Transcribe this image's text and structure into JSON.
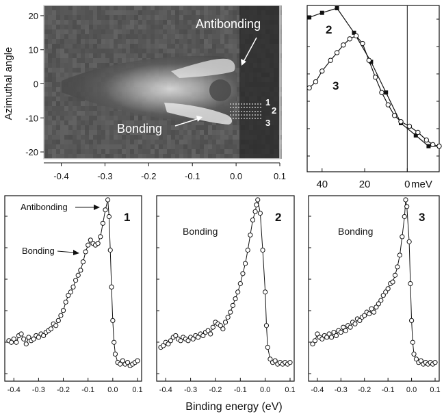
{
  "figure": {
    "xlabel": "Binding energy (eV)"
  },
  "chart_data": [
    {
      "id": "map",
      "type": "heatmap",
      "ylabel": "Azimuthal angle",
      "xlim": [
        -0.44,
        0.1
      ],
      "ylim": [
        -22,
        23
      ],
      "xticks": [
        -0.4,
        -0.3,
        -0.2,
        -0.1,
        0.0,
        0.1
      ],
      "xtick_labels": [
        "-0.4",
        "-0.3",
        "-0.2",
        "-0.1",
        "0.0",
        "0.1"
      ],
      "yticks": [
        20,
        10,
        0,
        -10,
        -20
      ],
      "ytick_labels": [
        "20",
        "10",
        "0",
        "-10",
        "-20"
      ],
      "annotations": [
        "Antibonding",
        "Bonding",
        "1",
        "2",
        "3"
      ],
      "cut_markers": [
        "1",
        "2",
        "3"
      ],
      "colormap": [
        "#1f1f1f",
        "#ffffff"
      ]
    },
    {
      "id": "mdc",
      "type": "line",
      "x_unit_label": "meV",
      "xlim": [
        47,
        -15
      ],
      "xticks": [
        40,
        20,
        0
      ],
      "xtick_labels": [
        "40",
        "20",
        "0"
      ],
      "vline_x": 0,
      "series": [
        {
          "name": "2",
          "marker": "filled-square",
          "x": [
            46,
            40,
            33,
            25,
            17,
            10,
            3,
            -4,
            -10,
            -15
          ],
          "y": [
            0.94,
            0.97,
            1.0,
            0.84,
            0.65,
            0.45,
            0.25,
            0.17,
            0.1,
            0.1
          ]
        },
        {
          "name": "3",
          "marker": "open-circle",
          "x": [
            46,
            43,
            40,
            36,
            33,
            30,
            27,
            24,
            21,
            18,
            15,
            12,
            9,
            6,
            3,
            -1,
            -5,
            -9,
            -12,
            -15
          ],
          "y": [
            0.48,
            0.52,
            0.59,
            0.66,
            0.71,
            0.76,
            0.8,
            0.82,
            0.77,
            0.66,
            0.55,
            0.45,
            0.37,
            0.3,
            0.26,
            0.23,
            0.19,
            0.14,
            0.11,
            0.1
          ]
        }
      ]
    },
    {
      "id": "edc1",
      "type": "scatter",
      "label": "1",
      "annotations": [
        "Antibonding",
        "Bonding"
      ],
      "xticks": [
        -0.4,
        -0.3,
        -0.2,
        -0.1,
        0.0,
        0.1
      ],
      "xtick_labels": [
        "-0.4",
        "-0.3",
        "-0.2",
        "-0.1",
        "0.0",
        "0.1"
      ],
      "points": [
        [
          -0.42,
          0.16
        ],
        [
          -0.41,
          0.15
        ],
        [
          -0.4,
          0.17
        ],
        [
          -0.39,
          0.15
        ],
        [
          -0.38,
          0.19
        ],
        [
          -0.37,
          0.2
        ],
        [
          -0.36,
          0.17
        ],
        [
          -0.35,
          0.14
        ],
        [
          -0.34,
          0.18
        ],
        [
          -0.33,
          0.16
        ],
        [
          -0.32,
          0.17
        ],
        [
          -0.31,
          0.19
        ],
        [
          -0.3,
          0.18
        ],
        [
          -0.29,
          0.2
        ],
        [
          -0.28,
          0.19
        ],
        [
          -0.27,
          0.21
        ],
        [
          -0.26,
          0.22
        ],
        [
          -0.25,
          0.23
        ],
        [
          -0.24,
          0.26
        ],
        [
          -0.23,
          0.25
        ],
        [
          -0.22,
          0.28
        ],
        [
          -0.21,
          0.31
        ],
        [
          -0.2,
          0.34
        ],
        [
          -0.19,
          0.39
        ],
        [
          -0.18,
          0.43
        ],
        [
          -0.17,
          0.45
        ],
        [
          -0.16,
          0.48
        ],
        [
          -0.15,
          0.52
        ],
        [
          -0.14,
          0.55
        ],
        [
          -0.13,
          0.58
        ],
        [
          -0.12,
          0.63
        ],
        [
          -0.11,
          0.69
        ],
        [
          -0.1,
          0.73
        ],
        [
          -0.09,
          0.76
        ],
        [
          -0.08,
          0.74
        ],
        [
          -0.07,
          0.73
        ],
        [
          -0.06,
          0.74
        ],
        [
          -0.05,
          0.78
        ],
        [
          -0.04,
          0.86
        ],
        [
          -0.03,
          0.94
        ],
        [
          -0.02,
          1.0
        ],
        [
          -0.015,
          0.9
        ],
        [
          -0.01,
          0.7
        ],
        [
          -0.005,
          0.48
        ],
        [
          0.0,
          0.28
        ],
        [
          0.005,
          0.15
        ],
        [
          0.01,
          0.08
        ],
        [
          0.02,
          0.03
        ],
        [
          0.03,
          0.02
        ],
        [
          0.04,
          0.04
        ],
        [
          0.05,
          0.02
        ],
        [
          0.06,
          0.03
        ],
        [
          0.07,
          0.01
        ],
        [
          0.08,
          0.02
        ],
        [
          0.09,
          0.03
        ],
        [
          0.1,
          0.04
        ]
      ]
    },
    {
      "id": "edc2",
      "type": "scatter",
      "label": "2",
      "annotations": [
        "Bonding"
      ],
      "xticks": [
        -0.4,
        -0.3,
        -0.2,
        -0.1,
        0.0,
        0.1
      ],
      "xtick_labels": [
        "-0.4",
        "-0.3",
        "-0.2",
        "-0.1",
        "0.0",
        "0.1"
      ],
      "points": [
        [
          -0.42,
          0.12
        ],
        [
          -0.41,
          0.13
        ],
        [
          -0.4,
          0.15
        ],
        [
          -0.39,
          0.14
        ],
        [
          -0.38,
          0.16
        ],
        [
          -0.37,
          0.18
        ],
        [
          -0.36,
          0.19
        ],
        [
          -0.35,
          0.17
        ],
        [
          -0.34,
          0.16
        ],
        [
          -0.33,
          0.18
        ],
        [
          -0.32,
          0.17
        ],
        [
          -0.31,
          0.16
        ],
        [
          -0.3,
          0.18
        ],
        [
          -0.29,
          0.17
        ],
        [
          -0.28,
          0.19
        ],
        [
          -0.27,
          0.18
        ],
        [
          -0.26,
          0.2
        ],
        [
          -0.25,
          0.19
        ],
        [
          -0.24,
          0.21
        ],
        [
          -0.23,
          0.22
        ],
        [
          -0.22,
          0.2
        ],
        [
          -0.21,
          0.24
        ],
        [
          -0.2,
          0.27
        ],
        [
          -0.19,
          0.26
        ],
        [
          -0.18,
          0.25
        ],
        [
          -0.17,
          0.23
        ],
        [
          -0.16,
          0.27
        ],
        [
          -0.15,
          0.3
        ],
        [
          -0.14,
          0.33
        ],
        [
          -0.13,
          0.37
        ],
        [
          -0.12,
          0.41
        ],
        [
          -0.11,
          0.45
        ],
        [
          -0.1,
          0.5
        ],
        [
          -0.09,
          0.56
        ],
        [
          -0.08,
          0.62
        ],
        [
          -0.07,
          0.7
        ],
        [
          -0.06,
          0.79
        ],
        [
          -0.05,
          0.88
        ],
        [
          -0.04,
          0.93
        ],
        [
          -0.035,
          0.97
        ],
        [
          -0.03,
          1.0
        ],
        [
          -0.02,
          0.92
        ],
        [
          -0.01,
          0.7
        ],
        [
          0.0,
          0.45
        ],
        [
          0.005,
          0.25
        ],
        [
          0.01,
          0.12
        ],
        [
          0.02,
          0.05
        ],
        [
          0.03,
          0.03
        ],
        [
          0.04,
          0.04
        ],
        [
          0.05,
          0.02
        ],
        [
          0.06,
          0.03
        ],
        [
          0.07,
          0.02
        ],
        [
          0.08,
          0.03
        ],
        [
          0.09,
          0.02
        ],
        [
          0.1,
          0.03
        ]
      ]
    },
    {
      "id": "edc3",
      "type": "scatter",
      "label": "3",
      "annotations": [
        "Bonding"
      ],
      "xticks": [
        -0.4,
        -0.3,
        -0.2,
        -0.1,
        0.0,
        0.1
      ],
      "xtick_labels": [
        "-0.4",
        "-0.3",
        "-0.2",
        "-0.1",
        "0.0",
        "0.1"
      ],
      "points": [
        [
          -0.42,
          0.14
        ],
        [
          -0.41,
          0.16
        ],
        [
          -0.4,
          0.2
        ],
        [
          -0.39,
          0.18
        ],
        [
          -0.38,
          0.17
        ],
        [
          -0.37,
          0.19
        ],
        [
          -0.36,
          0.18
        ],
        [
          -0.35,
          0.2
        ],
        [
          -0.34,
          0.18
        ],
        [
          -0.33,
          0.21
        ],
        [
          -0.32,
          0.19
        ],
        [
          -0.31,
          0.22
        ],
        [
          -0.3,
          0.21
        ],
        [
          -0.29,
          0.24
        ],
        [
          -0.28,
          0.22
        ],
        [
          -0.27,
          0.25
        ],
        [
          -0.26,
          0.24
        ],
        [
          -0.25,
          0.27
        ],
        [
          -0.24,
          0.26
        ],
        [
          -0.23,
          0.29
        ],
        [
          -0.22,
          0.28
        ],
        [
          -0.21,
          0.3
        ],
        [
          -0.2,
          0.31
        ],
        [
          -0.19,
          0.33
        ],
        [
          -0.18,
          0.32
        ],
        [
          -0.17,
          0.35
        ],
        [
          -0.16,
          0.33
        ],
        [
          -0.15,
          0.36
        ],
        [
          -0.14,
          0.38
        ],
        [
          -0.13,
          0.4
        ],
        [
          -0.12,
          0.43
        ],
        [
          -0.11,
          0.45
        ],
        [
          -0.1,
          0.47
        ],
        [
          -0.09,
          0.5
        ],
        [
          -0.08,
          0.51
        ],
        [
          -0.07,
          0.55
        ],
        [
          -0.06,
          0.6
        ],
        [
          -0.05,
          0.67
        ],
        [
          -0.04,
          0.78
        ],
        [
          -0.03,
          0.9
        ],
        [
          -0.025,
          1.0
        ],
        [
          -0.02,
          0.96
        ],
        [
          -0.01,
          0.75
        ],
        [
          -0.005,
          0.5
        ],
        [
          0.0,
          0.28
        ],
        [
          0.005,
          0.15
        ],
        [
          0.01,
          0.08
        ],
        [
          0.02,
          0.05
        ],
        [
          0.03,
          0.03
        ],
        [
          0.04,
          0.04
        ],
        [
          0.05,
          0.02
        ],
        [
          0.06,
          0.03
        ],
        [
          0.07,
          0.02
        ],
        [
          0.08,
          0.03
        ],
        [
          0.09,
          0.02
        ],
        [
          0.1,
          0.03
        ]
      ]
    }
  ]
}
